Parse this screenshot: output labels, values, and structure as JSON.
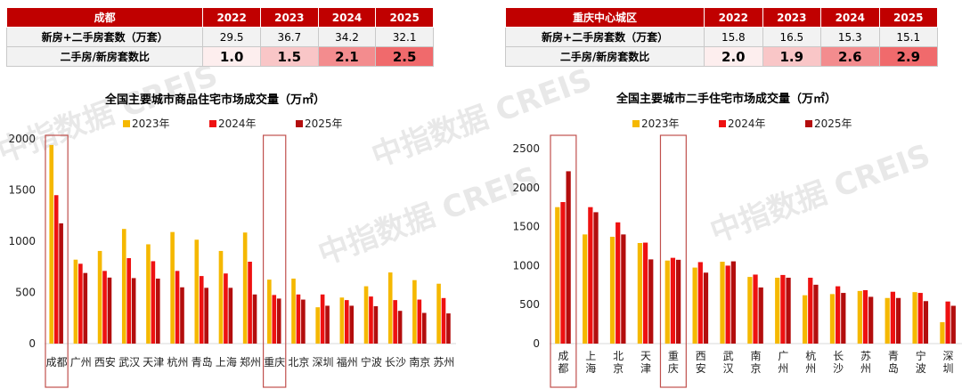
{
  "watermark": "中指数据 CREIS",
  "tables": [
    {
      "header": [
        "成都",
        "2022",
        "2023",
        "2024",
        "2025"
      ],
      "rows": [
        {
          "label": "新房+二手房套数（万套）",
          "values": [
            "29.5",
            "36.7",
            "34.2",
            "32.1"
          ]
        },
        {
          "label": "二手房/新房套数比",
          "values": [
            "1.0",
            "1.5",
            "2.1",
            "2.5"
          ]
        }
      ]
    },
    {
      "header": [
        "重庆中心城区",
        "2022",
        "2023",
        "2024",
        "2025"
      ],
      "rows": [
        {
          "label": "新房+二手房套数（万套）",
          "values": [
            "15.8",
            "16.5",
            "15.3",
            "15.1"
          ]
        },
        {
          "label": "二手房/新房套数比",
          "values": [
            "2.0",
            "1.9",
            "2.6",
            "2.9"
          ]
        }
      ]
    }
  ],
  "colors": {
    "2023": "#f5b800",
    "2024": "#ee1111",
    "2025": "#b30d0d",
    "highlight_box": "#c0504d",
    "header": "#c00000"
  },
  "chart_data": [
    {
      "type": "bar",
      "title": "全国主要城市商品住宅市场成交量（万㎡）",
      "categories": [
        "成都",
        "广州",
        "西安",
        "武汉",
        "天津",
        "杭州",
        "青岛",
        "上海",
        "郑州",
        "重庆",
        "北京",
        "深圳",
        "福州",
        "宁波",
        "长沙",
        "南京",
        "苏州"
      ],
      "series": [
        {
          "name": "2023年",
          "values": [
            1940,
            820,
            905,
            1120,
            970,
            1090,
            1015,
            905,
            1085,
            625,
            635,
            355,
            450,
            560,
            695,
            620,
            585
          ]
        },
        {
          "name": "2024年",
          "values": [
            1450,
            780,
            710,
            835,
            805,
            710,
            660,
            685,
            800,
            475,
            480,
            480,
            425,
            460,
            425,
            430,
            445
          ]
        },
        {
          "name": "2025年",
          "values": [
            1175,
            690,
            645,
            640,
            635,
            550,
            545,
            545,
            480,
            440,
            430,
            370,
            370,
            365,
            320,
            300,
            295
          ]
        }
      ],
      "yticks": [
        "0",
        "500",
        "1000",
        "1500",
        "2000"
      ],
      "ylim": [
        0,
        2000
      ],
      "highlighted": [
        "成都",
        "重庆"
      ],
      "legend": "top",
      "grid": false
    },
    {
      "type": "bar",
      "title": "全国主要城市二手住宅市场成交量（万㎡）",
      "categories": [
        "成都",
        "上海",
        "北京",
        "天津",
        "重庆",
        "西安",
        "武汉",
        "南京",
        "广州",
        "杭州",
        "长沙",
        "苏州",
        "青岛",
        "宁波",
        "深圳"
      ],
      "series": [
        {
          "name": "2023年",
          "values": [
            1750,
            1400,
            1370,
            1290,
            1065,
            975,
            1050,
            855,
            845,
            620,
            635,
            675,
            585,
            660,
            275
          ]
        },
        {
          "name": "2024年",
          "values": [
            1815,
            1750,
            1555,
            1295,
            1100,
            1045,
            1000,
            885,
            880,
            845,
            735,
            685,
            665,
            650,
            540
          ]
        },
        {
          "name": "2025年",
          "values": [
            2210,
            1685,
            1400,
            1080,
            1075,
            910,
            1055,
            720,
            845,
            755,
            650,
            600,
            585,
            545,
            485
          ]
        }
      ],
      "yticks": [
        "0",
        "500",
        "1000",
        "1500",
        "2000",
        "2500"
      ],
      "ylim": [
        0,
        2500
      ],
      "highlighted": [
        "成都",
        "重庆"
      ],
      "legend": "top",
      "grid": false
    }
  ]
}
